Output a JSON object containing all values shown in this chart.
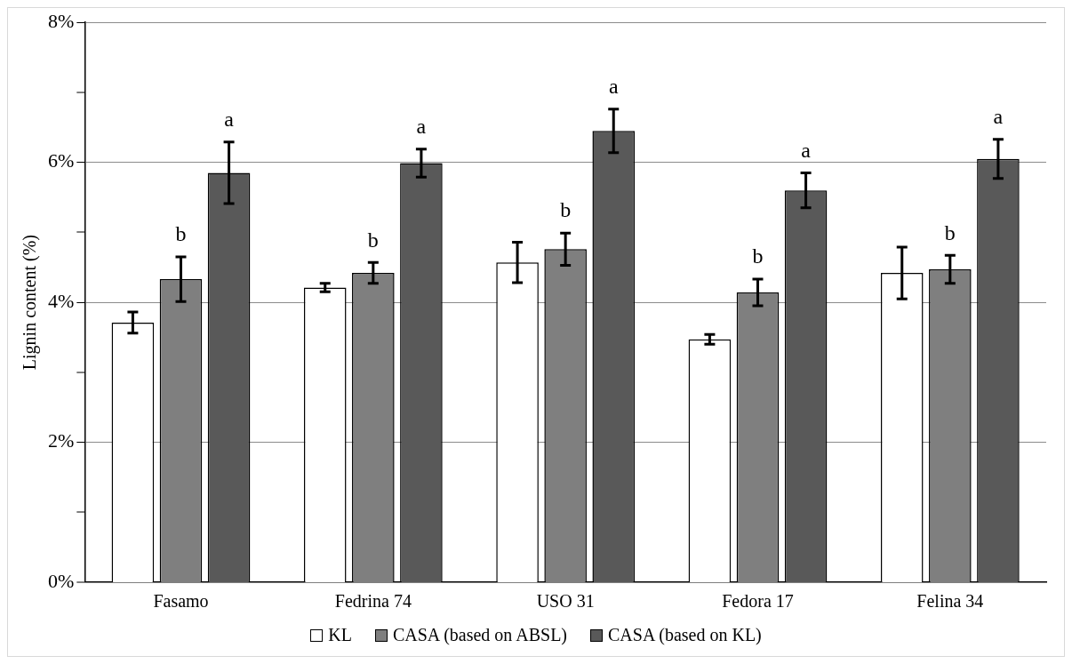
{
  "chart_data": {
    "type": "bar",
    "ylabel": "Lignin content (%)",
    "categories": [
      "Fasamo",
      "Fedrina 74",
      "USO 31",
      "Fedora 17",
      "Felina 34"
    ],
    "series": [
      {
        "name": "KL",
        "color": "#ffffff",
        "values": [
          3.71,
          4.21,
          4.57,
          3.47,
          4.42
        ],
        "errors": [
          0.15,
          0.06,
          0.29,
          0.07,
          0.37
        ]
      },
      {
        "name": "CASA (based on ABSL)",
        "color": "#7f7f7f",
        "values": [
          4.33,
          4.42,
          4.76,
          4.14,
          4.47
        ],
        "errors": [
          0.32,
          0.15,
          0.23,
          0.19,
          0.2
        ],
        "value_labels": [
          "b",
          "b",
          "b",
          "b",
          "b"
        ]
      },
      {
        "name": "CASA (based on KL)",
        "color": "#595959",
        "values": [
          5.85,
          5.99,
          6.45,
          5.6,
          6.05
        ],
        "errors": [
          0.44,
          0.2,
          0.31,
          0.25,
          0.28
        ],
        "value_labels": [
          "a",
          "a",
          "a",
          "a",
          "a"
        ]
      }
    ],
    "ylim": [
      0,
      8
    ],
    "yticks": [
      {
        "value": 0,
        "label": "0%"
      },
      {
        "value": 1,
        "label": null
      },
      {
        "value": 2,
        "label": "2%"
      },
      {
        "value": 3,
        "label": null
      },
      {
        "value": 4,
        "label": "4%"
      },
      {
        "value": 5,
        "label": null
      },
      {
        "value": 6,
        "label": "6%"
      },
      {
        "value": 7,
        "label": null
      },
      {
        "value": 8,
        "label": "8%"
      }
    ],
    "grid": "y",
    "legend": "bottom"
  }
}
